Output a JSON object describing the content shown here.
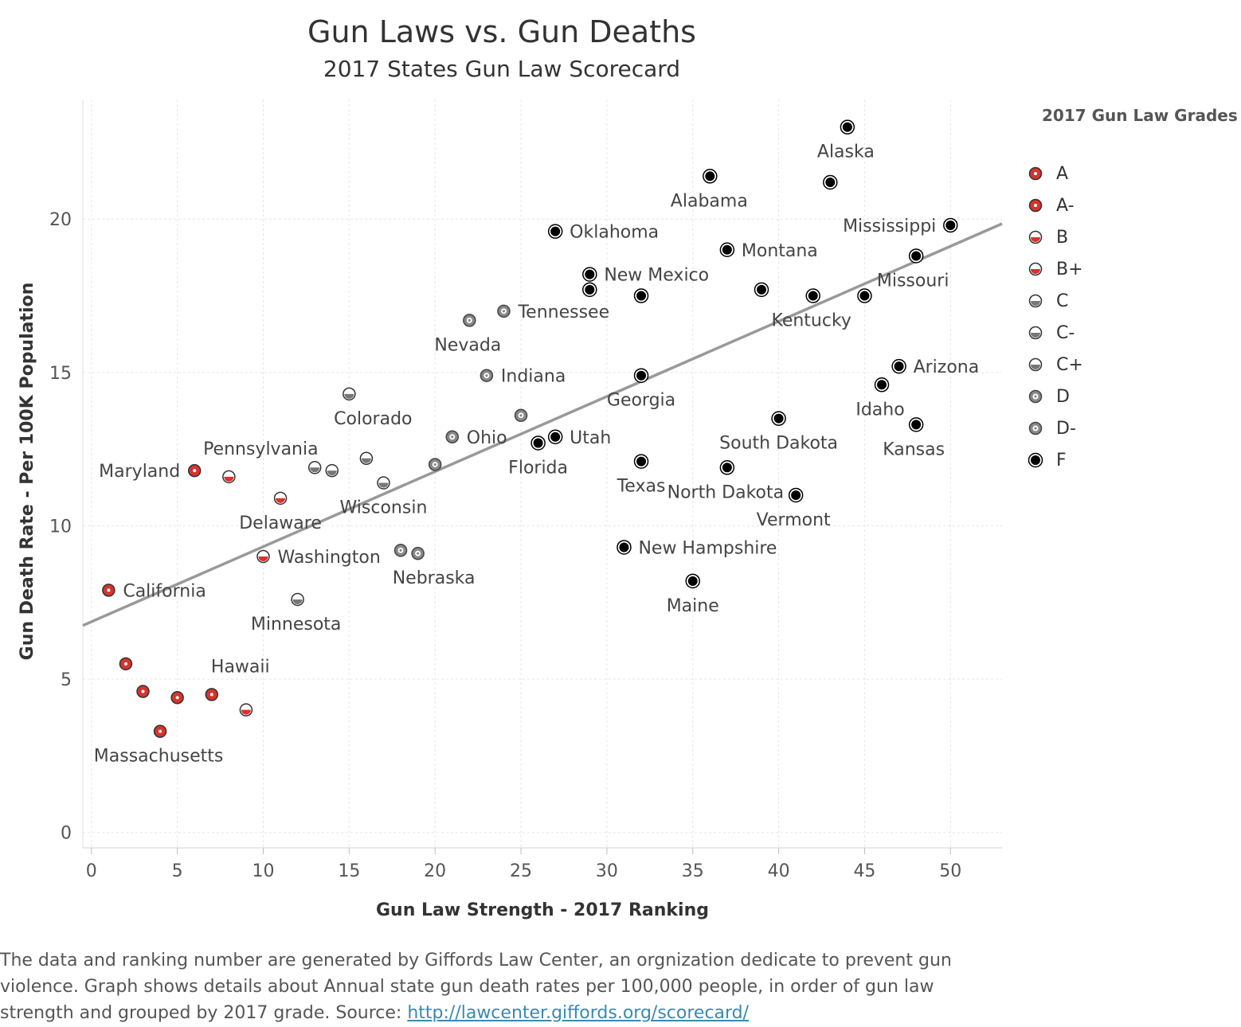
{
  "title": "Gun Laws vs. Gun Deaths",
  "subtitle": "2017 States Gun Law Scorecard",
  "legend_title": "2017 Gun Law Grades",
  "footer": {
    "text": "The data and ranking number are generated by Giffords Law Center, an orgnization dedicate to prevent gun violence. Graph shows details about Annual state gun death rates per 100,000 people, in order of gun law strength and grouped by 2017 grade. Source: ",
    "link": "http://lawcenter.giffords.org/scorecard/"
  },
  "grade_styles": {
    "A": {
      "style": "dot",
      "color": "#d6342c"
    },
    "A-": {
      "style": "dot",
      "color": "#d6342c"
    },
    "B": {
      "style": "half",
      "color": "#d6342c"
    },
    "B+": {
      "style": "half",
      "color": "#d6342c"
    },
    "C": {
      "style": "half",
      "color": "#777777"
    },
    "C-": {
      "style": "half",
      "color": "#777777"
    },
    "C+": {
      "style": "half",
      "color": "#777777"
    },
    "D": {
      "style": "ring",
      "color": "#888888"
    },
    "D-": {
      "style": "ring",
      "color": "#888888"
    },
    "F": {
      "style": "solid",
      "color": "#000000"
    }
  },
  "chart_data": {
    "type": "scatter",
    "title": "Gun Laws vs. Gun Deaths",
    "subtitle": "2017 States Gun Law Scorecard",
    "xlabel": "Gun Law Strength - 2017 Ranking",
    "ylabel": "Gun Death Rate - Per 100K Population",
    "xlim": [
      -0.5,
      53
    ],
    "ylim": [
      -0.5,
      23.9
    ],
    "xticks": [
      0,
      5,
      10,
      15,
      20,
      25,
      30,
      35,
      40,
      45,
      50
    ],
    "yticks": [
      0,
      5,
      10,
      15,
      20
    ],
    "grid": true,
    "legend_position": "right",
    "legend": [
      "A",
      "A-",
      "B",
      "B+",
      "C",
      "C-",
      "C+",
      "D",
      "D-",
      "F"
    ],
    "trendline": {
      "x": [
        -0.5,
        53
      ],
      "y": [
        6.75,
        19.85
      ]
    },
    "points": [
      {
        "x": 1,
        "y": 7.9,
        "grade": "A",
        "label": "California"
      },
      {
        "x": 2,
        "y": 5.5,
        "grade": "A",
        "label": ""
      },
      {
        "x": 3,
        "y": 4.6,
        "grade": "A",
        "label": ""
      },
      {
        "x": 4,
        "y": 3.3,
        "grade": "A",
        "label": "Massachusetts"
      },
      {
        "x": 5,
        "y": 4.4,
        "grade": "A",
        "label": ""
      },
      {
        "x": 6,
        "y": 11.8,
        "grade": "A",
        "label": "Maryland"
      },
      {
        "x": 7,
        "y": 4.5,
        "grade": "A-",
        "label": "Hawaii"
      },
      {
        "x": 8,
        "y": 11.6,
        "grade": "B+",
        "label": "Pennsylvania"
      },
      {
        "x": 9,
        "y": 4.0,
        "grade": "B+",
        "label": ""
      },
      {
        "x": 10,
        "y": 9.0,
        "grade": "B",
        "label": "Washington"
      },
      {
        "x": 11,
        "y": 10.9,
        "grade": "B",
        "label": "Delaware"
      },
      {
        "x": 12,
        "y": 7.6,
        "grade": "C",
        "label": "Minnesota"
      },
      {
        "x": 13,
        "y": 11.9,
        "grade": "C",
        "label": ""
      },
      {
        "x": 14,
        "y": 11.8,
        "grade": "C",
        "label": ""
      },
      {
        "x": 15,
        "y": 14.3,
        "grade": "C-",
        "label": "Colorado"
      },
      {
        "x": 16,
        "y": 12.2,
        "grade": "C-",
        "label": ""
      },
      {
        "x": 17,
        "y": 11.4,
        "grade": "C-",
        "label": "Wisconsin"
      },
      {
        "x": 18,
        "y": 9.2,
        "grade": "D",
        "label": ""
      },
      {
        "x": 19,
        "y": 9.1,
        "grade": "D",
        "label": "Nebraska"
      },
      {
        "x": 20,
        "y": 12.0,
        "grade": "D",
        "label": ""
      },
      {
        "x": 21,
        "y": 12.9,
        "grade": "D",
        "label": "Ohio"
      },
      {
        "x": 22,
        "y": 16.7,
        "grade": "D-",
        "label": "Nevada"
      },
      {
        "x": 23,
        "y": 14.9,
        "grade": "D-",
        "label": "Indiana"
      },
      {
        "x": 24,
        "y": 17.0,
        "grade": "D-",
        "label": "Tennessee"
      },
      {
        "x": 25,
        "y": 13.6,
        "grade": "D-",
        "label": ""
      },
      {
        "x": 26,
        "y": 12.7,
        "grade": "F",
        "label": "Florida"
      },
      {
        "x": 27,
        "y": 12.9,
        "grade": "F",
        "label": "Utah"
      },
      {
        "x": 27,
        "y": 19.6,
        "grade": "F",
        "label": "Oklahoma"
      },
      {
        "x": 29,
        "y": 18.2,
        "grade": "F",
        "label": "New Mexico"
      },
      {
        "x": 29,
        "y": 17.7,
        "grade": "F",
        "label": ""
      },
      {
        "x": 31,
        "y": 9.3,
        "grade": "F",
        "label": "New Hampshire"
      },
      {
        "x": 32,
        "y": 17.5,
        "grade": "F",
        "label": ""
      },
      {
        "x": 32,
        "y": 14.9,
        "grade": "F",
        "label": "Georgia"
      },
      {
        "x": 32,
        "y": 12.1,
        "grade": "F",
        "label": "Texas"
      },
      {
        "x": 35,
        "y": 8.2,
        "grade": "F",
        "label": "Maine"
      },
      {
        "x": 36,
        "y": 21.4,
        "grade": "F",
        "label": "Alabama"
      },
      {
        "x": 37,
        "y": 19.0,
        "grade": "F",
        "label": "Montana"
      },
      {
        "x": 37,
        "y": 11.9,
        "grade": "F",
        "label": "North Dakota"
      },
      {
        "x": 39,
        "y": 17.7,
        "grade": "F",
        "label": ""
      },
      {
        "x": 40,
        "y": 13.5,
        "grade": "F",
        "label": "South Dakota"
      },
      {
        "x": 41,
        "y": 11.0,
        "grade": "F",
        "label": "Vermont"
      },
      {
        "x": 42,
        "y": 17.5,
        "grade": "F",
        "label": "Kentucky"
      },
      {
        "x": 43,
        "y": 21.2,
        "grade": "F",
        "label": ""
      },
      {
        "x": 44,
        "y": 23.0,
        "grade": "F",
        "label": "Alaska"
      },
      {
        "x": 45,
        "y": 17.5,
        "grade": "F",
        "label": ""
      },
      {
        "x": 46,
        "y": 14.6,
        "grade": "F",
        "label": "Idaho"
      },
      {
        "x": 47,
        "y": 15.2,
        "grade": "F",
        "label": "Arizona"
      },
      {
        "x": 48,
        "y": 18.8,
        "grade": "F",
        "label": "Missouri"
      },
      {
        "x": 48,
        "y": 13.3,
        "grade": "F",
        "label": "Kansas"
      },
      {
        "x": 50,
        "y": 19.8,
        "grade": "F",
        "label": "Mississippi"
      }
    ]
  }
}
